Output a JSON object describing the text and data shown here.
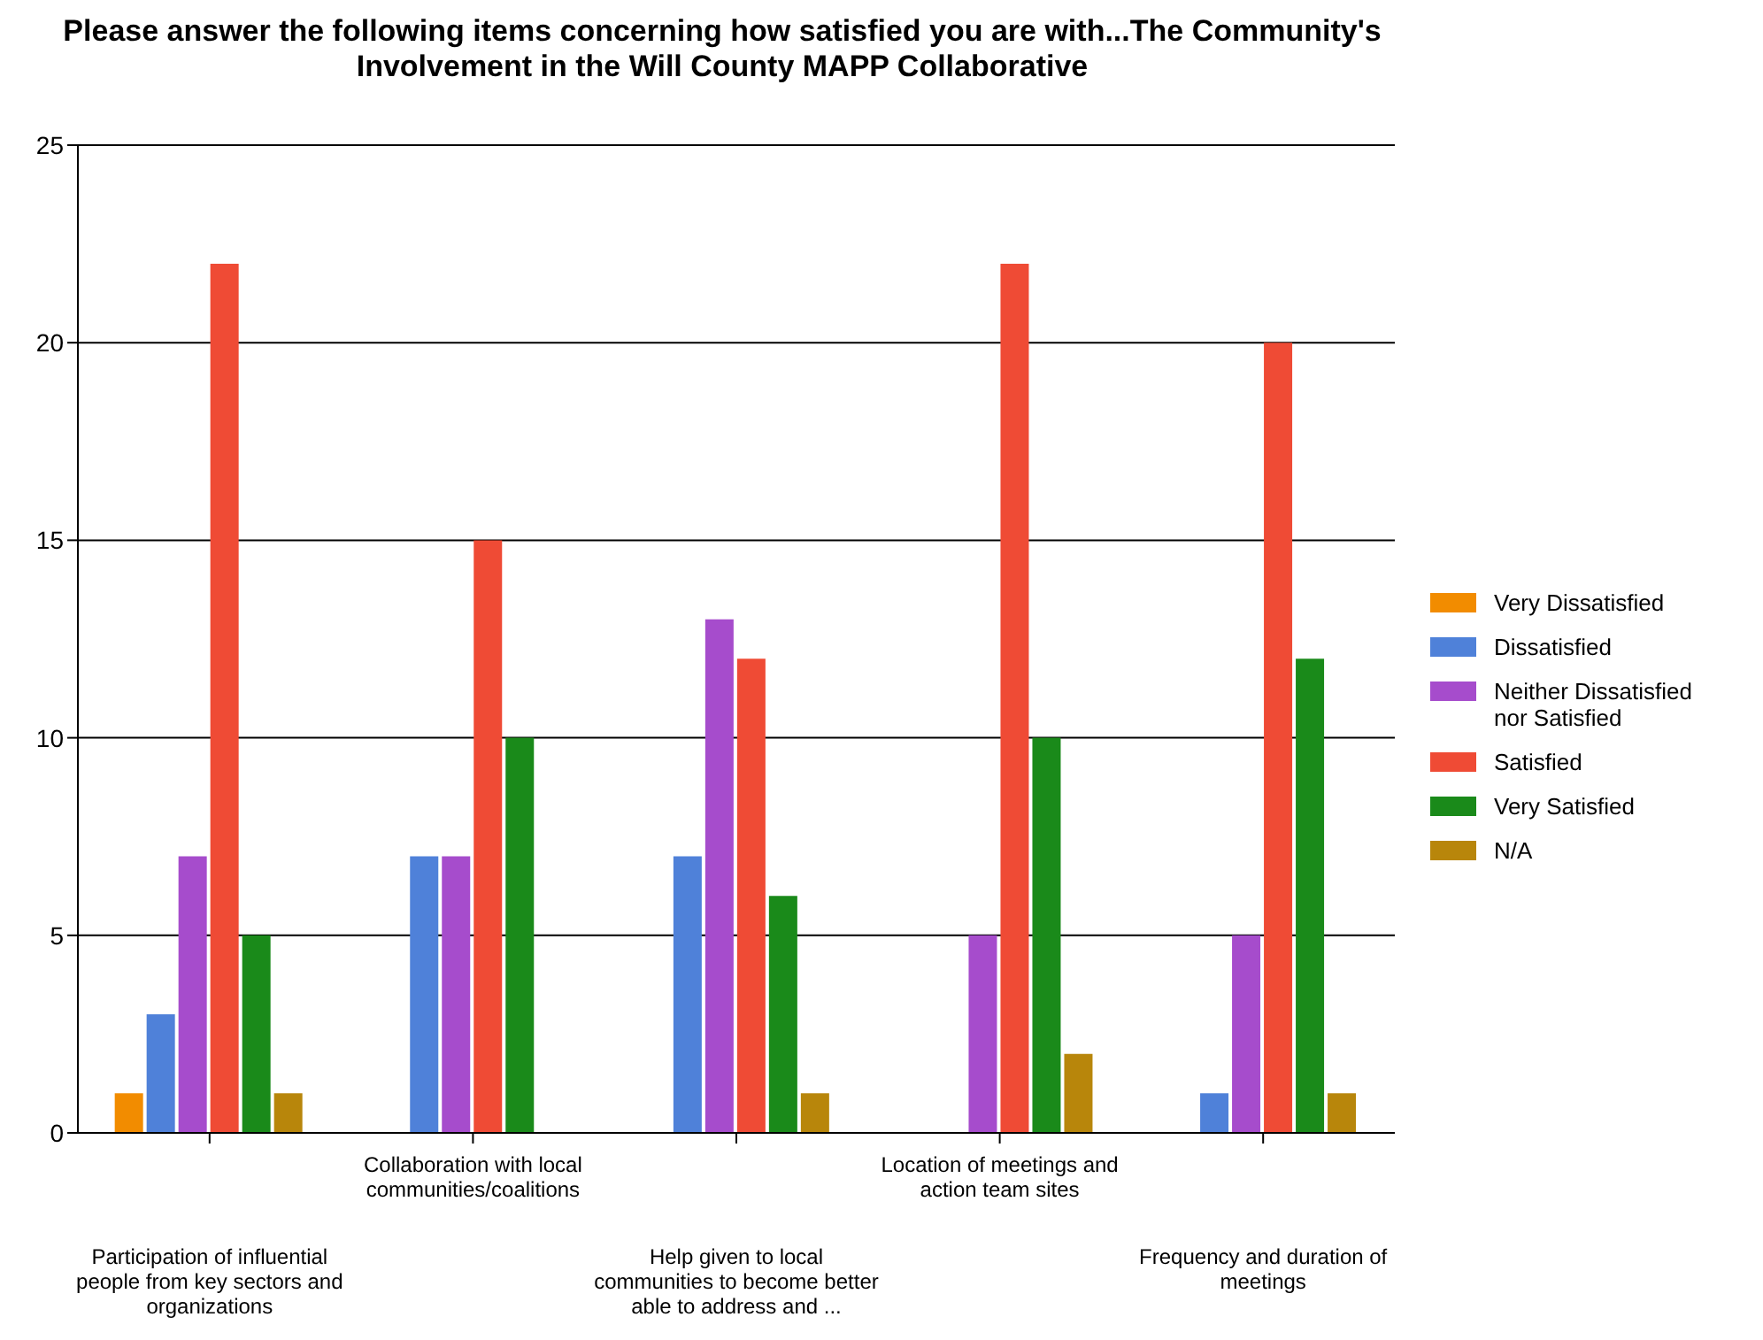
{
  "chart_data": {
    "type": "bar",
    "title": "Please answer the following items concerning how satisfied you are with...The Community's Involvement in the Will County MAPP Collaborative",
    "categories": [
      "Participation of influential people from key sectors and organizations",
      "Collaboration with local communities/coalitions",
      "Help given to local communities to become better able to address and ...",
      "Location of meetings and action team sites",
      "Frequency and duration of meetings"
    ],
    "series": [
      {
        "name": "Very Dissatisfied",
        "color": "#f28c00",
        "values": [
          1,
          0,
          0,
          0,
          0
        ]
      },
      {
        "name": "Dissatisfied",
        "color": "#4f81d9",
        "values": [
          3,
          7,
          7,
          0,
          1
        ]
      },
      {
        "name": "Neither Dissatisfied nor Satisfied",
        "color": "#a64ccc",
        "values": [
          7,
          7,
          13,
          5,
          5
        ]
      },
      {
        "name": "Satisfied",
        "color": "#ef4b35",
        "values": [
          22,
          15,
          12,
          22,
          20
        ]
      },
      {
        "name": "Very Satisfied",
        "color": "#1a8a1a",
        "values": [
          5,
          10,
          6,
          10,
          12
        ]
      },
      {
        "name": "N/A",
        "color": "#b8860b",
        "values": [
          1,
          0,
          1,
          2,
          1
        ]
      }
    ],
    "ylim": [
      0,
      25
    ],
    "yticks": [
      0,
      5,
      10,
      15,
      20,
      25
    ],
    "grid": "y",
    "legend": "right"
  }
}
